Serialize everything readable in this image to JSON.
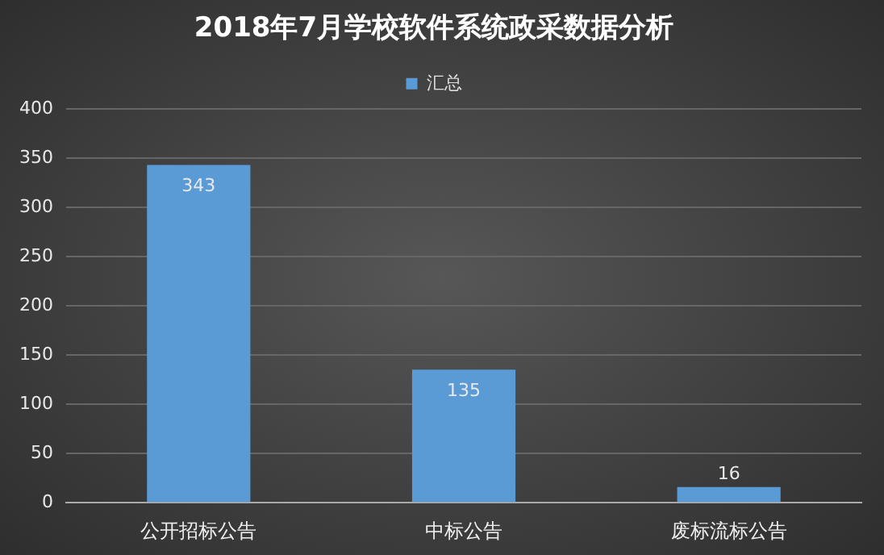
{
  "chart_data": {
    "type": "bar",
    "title": "2018年7月学校软件系统政采数据分析",
    "categories": [
      "公开招标公告",
      "中标公告",
      "废标流标公告"
    ],
    "series": [
      {
        "name": "汇总",
        "color": "#5b9bd5",
        "values": [
          343,
          135,
          16
        ]
      }
    ],
    "ylim": [
      0,
      400
    ],
    "yticks": [
      0,
      50,
      100,
      150,
      200,
      250,
      300,
      350,
      400
    ],
    "grid": "y",
    "legend": "top",
    "data_labels": true
  }
}
